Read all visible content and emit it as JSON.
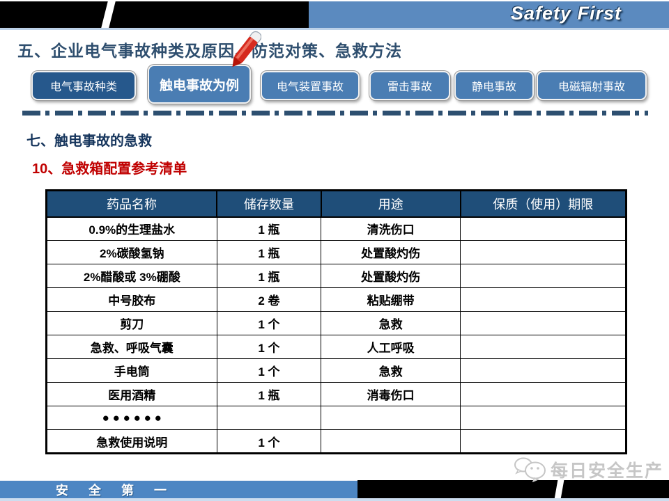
{
  "slide": {
    "brand": "Safety First",
    "title": "五、企业电气事故种类及原因、防范对策、急救方法",
    "section_heading": "七、触电事故的急救",
    "section_subheading": "10、急救箱配置参考清单",
    "footer_slogan": "安 全 第 一",
    "watermark": "每日安全生产"
  },
  "nav": {
    "buttons": [
      {
        "label": "电气事故种类",
        "active": false
      },
      {
        "label": "触电事故为例",
        "active": true
      },
      {
        "label": "电气装置事故",
        "active": false
      },
      {
        "label": "雷击事故",
        "active": false
      },
      {
        "label": "静电事故",
        "active": false
      },
      {
        "label": "电磁辐射事故",
        "active": false
      }
    ]
  },
  "table": {
    "headers": [
      "药品名称",
      "储存数量",
      "用途",
      "保质（使用）期限"
    ],
    "rows": [
      [
        "0.9%的生理盐水",
        "1 瓶",
        "清洗伤口",
        ""
      ],
      [
        "2%碳酸氢钠",
        "1 瓶",
        "处置酸灼伤",
        ""
      ],
      [
        "2%醋酸或 3%硼酸",
        "1 瓶",
        "处置酸灼伤",
        ""
      ],
      [
        "中号胶布",
        "2 卷",
        "粘贴绷带",
        ""
      ],
      [
        "剪刀",
        "1 个",
        "急救",
        ""
      ],
      [
        "急救、呼吸气囊",
        "1 个",
        "人工呼吸",
        ""
      ],
      [
        "手电筒",
        "1 个",
        "急救",
        ""
      ],
      [
        "医用酒精",
        "1 瓶",
        "消毒伤口",
        ""
      ],
      [
        "● ● ●  ● ● ●",
        "",
        "",
        ""
      ],
      [
        "急救使用说明",
        "1 个",
        "",
        ""
      ]
    ]
  },
  "icons": {
    "pen": "red-pen-icon",
    "wechat": "wechat-logo-icon"
  },
  "colors": {
    "topbar-blue": "#5b8abf",
    "btn-blue": "#4a7db3",
    "btn-dark-blue": "#26588c",
    "table-header-bg": "#1f4e79",
    "heading-navy": "#17365d",
    "subheading-red": "#c00000",
    "title-blue": "#2e4e6e",
    "footer-blue": "#4d86c3",
    "dash-blue": "#2d4f70",
    "watermark-gray": "#c6c6c6"
  }
}
